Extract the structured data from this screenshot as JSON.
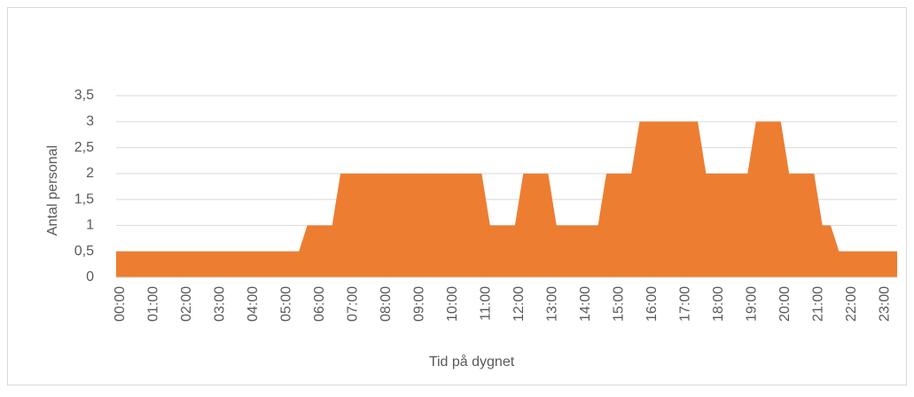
{
  "chart_data": {
    "type": "area",
    "x_label": "Tid på dygnet",
    "y_label": "Antal personal",
    "color": "#ed7d31",
    "categories": [
      "00:00",
      null,
      null,
      null,
      "01:00",
      null,
      null,
      null,
      "02:00",
      null,
      null,
      null,
      "03:00",
      null,
      null,
      null,
      "04:00",
      null,
      null,
      null,
      "05:00",
      null,
      null,
      null,
      "06:00",
      null,
      null,
      null,
      "07:00",
      null,
      null,
      null,
      "08:00",
      null,
      null,
      null,
      "09:00",
      null,
      null,
      null,
      "10:00",
      null,
      null,
      null,
      "11:00",
      null,
      null,
      null,
      "12:00",
      null,
      null,
      null,
      "13:00",
      null,
      null,
      null,
      "14:00",
      null,
      null,
      null,
      "15:00",
      null,
      null,
      null,
      "16:00",
      null,
      null,
      null,
      "17:00",
      null,
      null,
      null,
      "18:00",
      null,
      null,
      null,
      "19:00",
      null,
      null,
      null,
      "20:00",
      null,
      null,
      null,
      "21:00",
      null,
      null,
      null,
      "22:00",
      null,
      null,
      null,
      "23:00",
      null,
      null
    ],
    "values": [
      0.5,
      0.5,
      0.5,
      0.5,
      0.5,
      0.5,
      0.5,
      0.5,
      0.5,
      0.5,
      0.5,
      0.5,
      0.5,
      0.5,
      0.5,
      0.5,
      0.5,
      0.5,
      0.5,
      0.5,
      0.5,
      0.5,
      0.5,
      1,
      1,
      1,
      1,
      2,
      2,
      2,
      2,
      2,
      2,
      2,
      2,
      2,
      2,
      2,
      2,
      2,
      2,
      2,
      2,
      2,
      2,
      1,
      1,
      1,
      1,
      2,
      2,
      2,
      2,
      1,
      1,
      1,
      1,
      1,
      1,
      2,
      2,
      2,
      2,
      3,
      3,
      3,
      3,
      3,
      3,
      3,
      3,
      2,
      2,
      2,
      2,
      2,
      2,
      3,
      3,
      3,
      3,
      2,
      2,
      2,
      2,
      1,
      1,
      0.5,
      0.5,
      0.5,
      0.5,
      0.5,
      0.5,
      0.5,
      0.5
    ],
    "ylim": [
      0,
      3.5
    ],
    "yticks": [
      0,
      {
        "value": 0.5,
        "label": "0,5"
      },
      1,
      {
        "value": 1.5,
        "label": "1,5"
      },
      2,
      {
        "value": 2.5,
        "label": "2,5"
      },
      3,
      {
        "value": 3.5,
        "label": "3,5"
      }
    ],
    "grid": true
  }
}
